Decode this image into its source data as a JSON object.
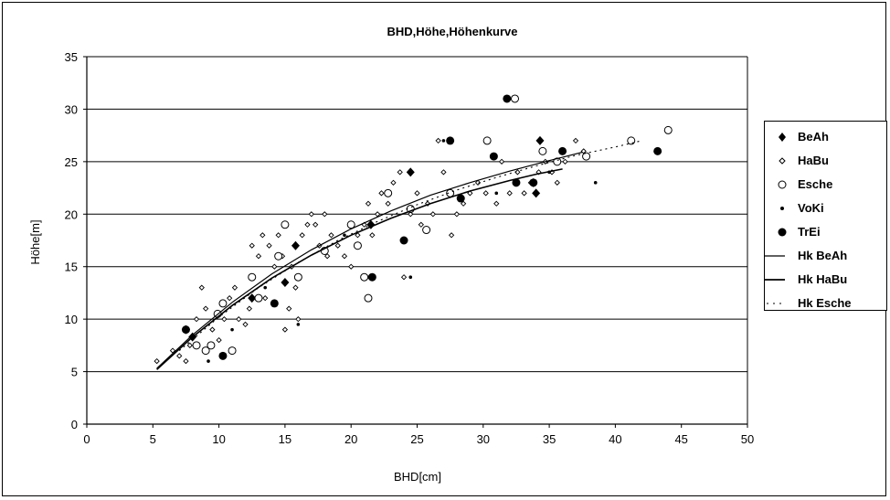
{
  "chart_data": {
    "type": "scatter",
    "title": "BHD,Höhe,Höhenkurve",
    "xlabel": "BHD[cm]",
    "ylabel": "Höhe[m]",
    "xlim": [
      0,
      50
    ],
    "ylim": [
      0,
      35
    ],
    "x_ticks": [
      "0",
      "5",
      "10",
      "15",
      "20",
      "25",
      "30",
      "35",
      "40",
      "45",
      "50"
    ],
    "y_ticks": [
      "0",
      "5",
      "10",
      "15",
      "20",
      "25",
      "30",
      "35"
    ],
    "grid": "horizontal",
    "legend_position": "right",
    "series": [
      {
        "name": "BeAh",
        "marker": "diamond-filled",
        "points": [
          [
            7.5,
            9
          ],
          [
            8,
            8.3
          ],
          [
            12.5,
            12
          ],
          [
            15,
            13.5
          ],
          [
            15.8,
            17
          ],
          [
            21.5,
            19
          ],
          [
            24.5,
            24
          ],
          [
            34.3,
            27
          ],
          [
            34,
            22
          ],
          [
            33.8,
            23
          ]
        ]
      },
      {
        "name": "HaBu",
        "marker": "small-diamond",
        "points": [
          [
            5.3,
            6
          ],
          [
            6.5,
            7
          ],
          [
            7,
            6.5
          ],
          [
            7.5,
            6
          ],
          [
            7.8,
            7.5
          ],
          [
            8.3,
            10
          ],
          [
            8.7,
            13
          ],
          [
            9,
            11
          ],
          [
            9.5,
            9
          ],
          [
            10,
            8
          ],
          [
            10.4,
            10
          ],
          [
            10.8,
            12
          ],
          [
            11.2,
            13
          ],
          [
            11.5,
            10
          ],
          [
            12,
            9.5
          ],
          [
            12.3,
            11
          ],
          [
            12.5,
            17
          ],
          [
            13,
            16
          ],
          [
            13.3,
            18
          ],
          [
            13.5,
            12
          ],
          [
            13.8,
            17
          ],
          [
            14.2,
            15
          ],
          [
            14.5,
            18
          ],
          [
            14.8,
            16
          ],
          [
            15,
            9
          ],
          [
            15.3,
            11
          ],
          [
            15.5,
            15
          ],
          [
            15.8,
            13
          ],
          [
            16,
            10
          ],
          [
            16.3,
            18
          ],
          [
            16.7,
            19
          ],
          [
            17,
            20
          ],
          [
            17.3,
            19
          ],
          [
            17.6,
            17
          ],
          [
            18,
            20
          ],
          [
            18.2,
            16
          ],
          [
            18.5,
            18
          ],
          [
            19,
            17
          ],
          [
            19.5,
            16
          ],
          [
            20,
            15
          ],
          [
            20.5,
            18
          ],
          [
            21,
            19
          ],
          [
            21.3,
            21
          ],
          [
            21.6,
            18
          ],
          [
            22,
            20
          ],
          [
            22.3,
            22
          ],
          [
            22.8,
            21
          ],
          [
            23.2,
            23
          ],
          [
            23.7,
            24
          ],
          [
            24,
            14
          ],
          [
            24.5,
            20
          ],
          [
            25,
            22
          ],
          [
            25.3,
            19
          ],
          [
            25.8,
            21
          ],
          [
            26.2,
            20
          ],
          [
            26.6,
            27
          ],
          [
            27,
            24
          ],
          [
            27.6,
            18
          ],
          [
            28,
            20
          ],
          [
            28.5,
            21
          ],
          [
            29,
            22
          ],
          [
            29.6,
            23
          ],
          [
            30.2,
            22
          ],
          [
            31,
            21
          ],
          [
            31.4,
            25
          ],
          [
            32,
            22
          ],
          [
            32.6,
            24
          ],
          [
            33.1,
            22
          ],
          [
            33.6,
            23
          ],
          [
            34.2,
            24
          ],
          [
            34.7,
            25
          ],
          [
            35.2,
            24
          ],
          [
            35.6,
            23
          ],
          [
            36.2,
            25
          ],
          [
            37,
            27
          ],
          [
            37.6,
            26
          ]
        ]
      },
      {
        "name": "Esche",
        "marker": "circle-open",
        "points": [
          [
            8.3,
            7.5
          ],
          [
            9,
            7
          ],
          [
            9.4,
            7.5
          ],
          [
            9.9,
            10.5
          ],
          [
            10.3,
            11.5
          ],
          [
            11,
            7
          ],
          [
            12.5,
            14
          ],
          [
            13,
            12
          ],
          [
            14.5,
            16
          ],
          [
            15,
            19
          ],
          [
            16,
            14
          ],
          [
            18,
            16.5
          ],
          [
            20,
            19
          ],
          [
            20.5,
            17
          ],
          [
            21,
            14
          ],
          [
            21.3,
            12
          ],
          [
            22.8,
            22
          ],
          [
            24.5,
            20.5
          ],
          [
            25.7,
            18.5
          ],
          [
            27.5,
            22
          ],
          [
            30.3,
            27
          ],
          [
            32.4,
            31
          ],
          [
            34.5,
            26
          ],
          [
            35.6,
            25
          ],
          [
            37.8,
            25.5
          ],
          [
            41.2,
            27
          ],
          [
            44,
            28
          ]
        ]
      },
      {
        "name": "VoKi",
        "marker": "dot-small",
        "points": [
          [
            9.2,
            6
          ],
          [
            11,
            9
          ],
          [
            13.5,
            13
          ],
          [
            16,
            9.5
          ],
          [
            19.5,
            18
          ],
          [
            24.5,
            14
          ],
          [
            27,
            27
          ],
          [
            31,
            22
          ],
          [
            35,
            24
          ],
          [
            38.5,
            23
          ]
        ]
      },
      {
        "name": "TrEi",
        "marker": "circle-filled",
        "points": [
          [
            7.5,
            9
          ],
          [
            10.3,
            6.5
          ],
          [
            14.2,
            11.5
          ],
          [
            21.6,
            14
          ],
          [
            24,
            17.5
          ],
          [
            27.5,
            27
          ],
          [
            28.3,
            21.5
          ],
          [
            30.8,
            25.5
          ],
          [
            31.8,
            31
          ],
          [
            32.5,
            23
          ],
          [
            33.8,
            23
          ],
          [
            36,
            26
          ],
          [
            43.2,
            26
          ]
        ]
      },
      {
        "name": "Hk BeAh",
        "marker": "line-solid",
        "points": [
          [
            5.3,
            5.3
          ],
          [
            8,
            8.5
          ],
          [
            11,
            11.6
          ],
          [
            14,
            14.3
          ],
          [
            17,
            16.6
          ],
          [
            20,
            18.6
          ],
          [
            23,
            20.3
          ],
          [
            26,
            21.8
          ],
          [
            29,
            23
          ],
          [
            32,
            24.1
          ],
          [
            35,
            25.1
          ],
          [
            37.5,
            25.9
          ]
        ]
      },
      {
        "name": "Hk HaBu",
        "marker": "line-solid",
        "points": [
          [
            5.3,
            5.2
          ],
          [
            8,
            8.3
          ],
          [
            11,
            11.3
          ],
          [
            14,
            13.9
          ],
          [
            17,
            16.1
          ],
          [
            20,
            18
          ],
          [
            23,
            19.6
          ],
          [
            26,
            21
          ],
          [
            29,
            22.2
          ],
          [
            32,
            23.2
          ],
          [
            34,
            23.8
          ],
          [
            36,
            24.3
          ]
        ]
      },
      {
        "name": "Hk Esche",
        "marker": "line-dotted",
        "points": [
          [
            7,
            7
          ],
          [
            10,
            10.2
          ],
          [
            13,
            13
          ],
          [
            16,
            15.4
          ],
          [
            19,
            17.5
          ],
          [
            22,
            19.3
          ],
          [
            25,
            20.9
          ],
          [
            28,
            22.3
          ],
          [
            31,
            23.5
          ],
          [
            34,
            24.6
          ],
          [
            37,
            25.6
          ],
          [
            40,
            26.4
          ],
          [
            42,
            27
          ]
        ]
      }
    ]
  }
}
